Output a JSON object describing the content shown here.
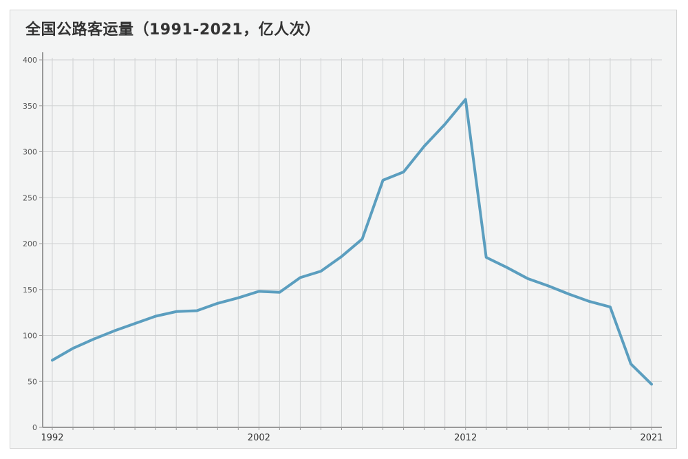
{
  "title": "全国公路客运量（1991-2021，亿人次）",
  "chart_data": {
    "type": "line",
    "title": "全国公路客运量（1991-2021，亿人次）",
    "xlabel": "",
    "ylabel": "",
    "x": [
      1992,
      1993,
      1994,
      1995,
      1996,
      1997,
      1998,
      1999,
      2000,
      2001,
      2002,
      2003,
      2004,
      2005,
      2006,
      2007,
      2008,
      2009,
      2010,
      2011,
      2012,
      2013,
      2014,
      2015,
      2016,
      2017,
      2018,
      2019,
      2020,
      2021
    ],
    "x_tick_labels": [
      "1992",
      "2002",
      "2012",
      "2021"
    ],
    "x_tick_values": [
      1992,
      2002,
      2012,
      2021
    ],
    "series": [
      {
        "name": "",
        "color": "#5b9ebf",
        "values": [
          73,
          86,
          96,
          105,
          113,
          121,
          126,
          127,
          135,
          141,
          148,
          147,
          163,
          170,
          186,
          205,
          269,
          278,
          306,
          330,
          357,
          185,
          174,
          162,
          154,
          145,
          137,
          131,
          69,
          47
        ]
      }
    ],
    "ylim": [
      0,
      400
    ],
    "y_ticks": [
      0,
      50,
      100,
      150,
      200,
      250,
      300,
      350,
      400
    ],
    "grid": true,
    "legend": "none"
  }
}
